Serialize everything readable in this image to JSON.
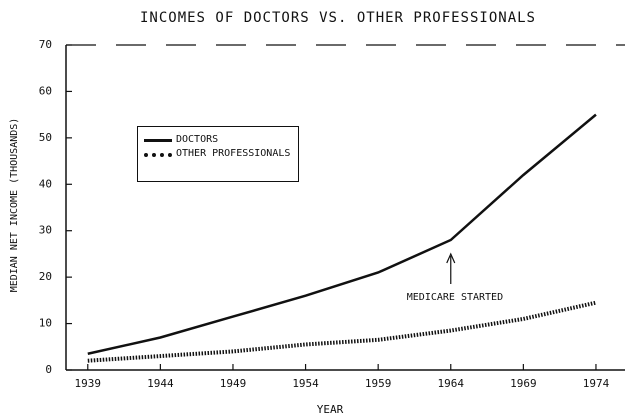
{
  "chart_data": {
    "type": "line",
    "title": "INCOMES OF DOCTORS VS. OTHER PROFESSIONALS",
    "xlabel": "YEAR",
    "ylabel": "MEDIAN NET INCOME (THOUSANDS)",
    "x": [
      1939,
      1944,
      1949,
      1954,
      1959,
      1964,
      1969,
      1974
    ],
    "series": [
      {
        "name": "DOCTORS",
        "color": "#111111",
        "values": [
          3.5,
          7,
          11.5,
          16,
          21,
          28,
          42,
          55
        ]
      },
      {
        "name": "OTHER PROFESSIONALS",
        "color": "#111111",
        "values": [
          2,
          3,
          4,
          5.5,
          6.5,
          8.5,
          11,
          14.5
        ]
      }
    ],
    "xlim": [
      1937.5,
      1976
    ],
    "xticks": [
      1939,
      1944,
      1949,
      1954,
      1959,
      1964,
      1969,
      1974
    ],
    "ylim": [
      0,
      70
    ],
    "yticks": [
      0,
      10,
      20,
      30,
      40,
      50,
      60,
      70
    ],
    "annotations": [
      {
        "text": "MEDICARE STARTED",
        "x": 1964
      }
    ]
  }
}
